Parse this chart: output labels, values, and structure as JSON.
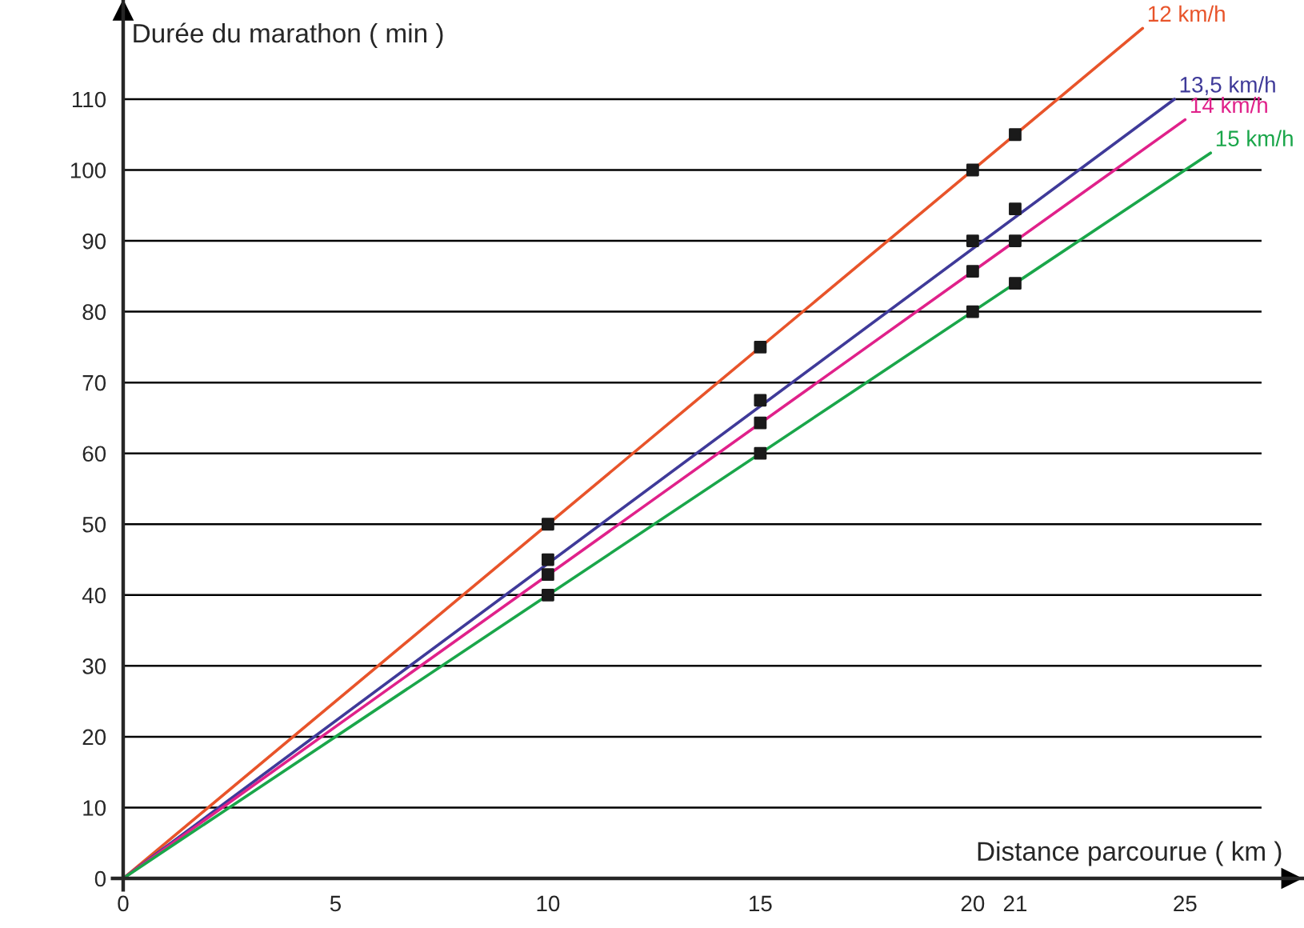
{
  "chart_data": {
    "type": "line",
    "xlabel": "Distance parcourue ( km )",
    "ylabel": "Durée du marathon ( min )",
    "xlim": [
      -2.9,
      27.8
    ],
    "ylim": [
      -7,
      124
    ],
    "xticks": [
      0,
      5,
      10,
      15,
      20,
      21,
      25
    ],
    "yticks": [
      0,
      10,
      20,
      30,
      40,
      50,
      60,
      70,
      80,
      90,
      100,
      110
    ],
    "grid": "y",
    "line_style": "solid",
    "marker": "none",
    "series": [
      {
        "name": "12 km/h",
        "color": "#e8542a",
        "x": [
          0,
          24
        ],
        "values": [
          0,
          120
        ]
      },
      {
        "name": "13,5 km/h",
        "color": "#3f3a99",
        "x": [
          0,
          24.75
        ],
        "values": [
          0,
          110
        ]
      },
      {
        "name": "14 km/h",
        "color": "#e0218a",
        "x": [
          0,
          25
        ],
        "values": [
          0,
          107.1
        ]
      },
      {
        "name": "15 km/h",
        "color": "#1aa64a",
        "x": [
          0,
          25.6
        ],
        "values": [
          0,
          102.4
        ]
      },
      {
        "type": "scatter",
        "marker": "square",
        "color": "#1a1a1a",
        "x": [
          10,
          15,
          20,
          21,
          10,
          15,
          20,
          21,
          10,
          15,
          20,
          21,
          10,
          15,
          20,
          21
        ],
        "values": [
          50,
          75,
          100,
          105,
          45,
          67.5,
          90,
          94.5,
          42.9,
          64.3,
          85.7,
          90,
          40,
          60,
          80,
          84
        ]
      }
    ]
  }
}
